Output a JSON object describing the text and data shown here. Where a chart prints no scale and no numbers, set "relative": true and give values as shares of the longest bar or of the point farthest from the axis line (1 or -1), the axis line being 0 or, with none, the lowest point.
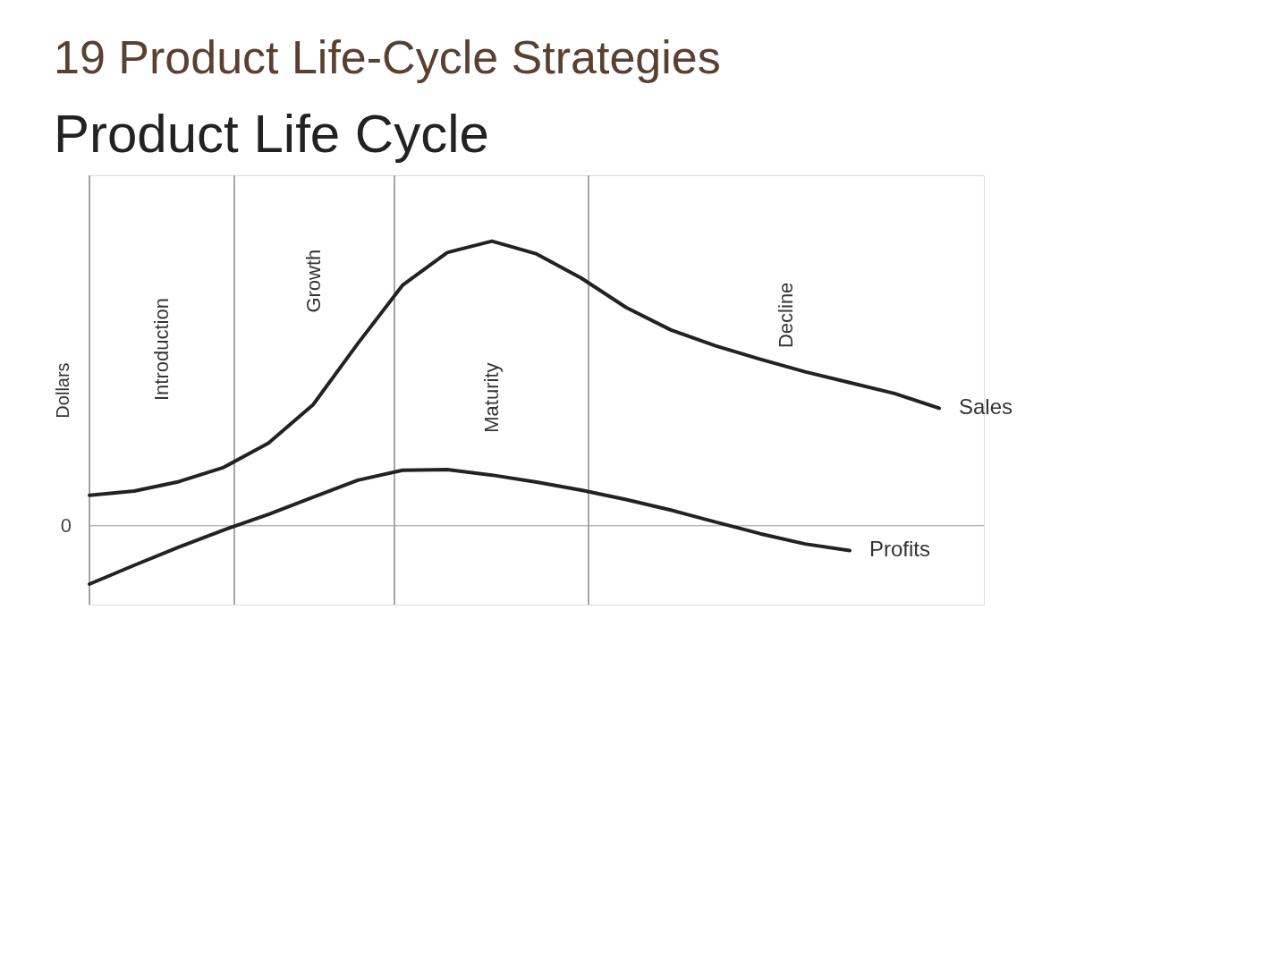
{
  "chart_data": {
    "type": "line",
    "title": "Product Life-Cycle Strategies",
    "subtitle": "Product Life Cycle",
    "ylabel": "Dollars",
    "relative": true,
    "categories": [
      null,
      null,
      null,
      null,
      null,
      null,
      null,
      null,
      null,
      null,
      null,
      null,
      null,
      null,
      null,
      null,
      null,
      null,
      null,
      null
    ],
    "series": [
      {
        "name": "Sales",
        "color": "#222222",
        "values": [
          0.107,
          0.122,
          0.155,
          0.205,
          0.29,
          0.425,
          0.64,
          0.845,
          0.96,
          1.0,
          0.955,
          0.87,
          0.767,
          0.688,
          0.632,
          0.585,
          0.541,
          0.503,
          0.465,
          0.413
        ]
      },
      {
        "name": "Profits",
        "color": "#222222",
        "values": [
          -0.205,
          -0.139,
          -0.075,
          -0.015,
          0.04,
          0.1,
          0.16,
          0.195,
          0.197,
          0.178,
          0.153,
          0.125,
          0.092,
          0.055,
          0.013,
          -0.028,
          -0.064,
          -0.087,
          null,
          null
        ]
      }
    ],
    "ref_lines": [
      {
        "axis": "y",
        "value": 0,
        "label": "0",
        "color": "#999999"
      }
    ],
    "annotations": [
      "19",
      "Introduction",
      "Growth",
      "Maturity",
      "Decline"
    ],
    "grid": false,
    "legend": false
  }
}
